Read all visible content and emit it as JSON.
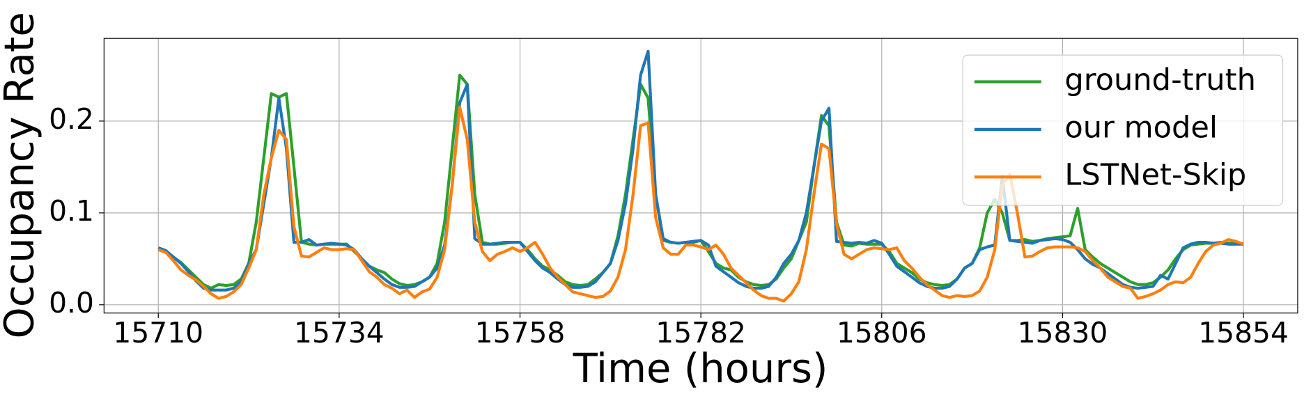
{
  "chart_data": {
    "type": "line",
    "xlabel": "Time (hours)",
    "ylabel": "Occupancy Rate",
    "x": [
      15710,
      15711,
      15712,
      15713,
      15714,
      15715,
      15716,
      15717,
      15718,
      15719,
      15720,
      15721,
      15722,
      15723,
      15724,
      15725,
      15726,
      15727,
      15728,
      15729,
      15730,
      15731,
      15732,
      15733,
      15734,
      15735,
      15736,
      15737,
      15738,
      15739,
      15740,
      15741,
      15742,
      15743,
      15744,
      15745,
      15746,
      15747,
      15748,
      15749,
      15750,
      15751,
      15752,
      15753,
      15754,
      15755,
      15756,
      15757,
      15758,
      15759,
      15760,
      15761,
      15762,
      15763,
      15764,
      15765,
      15766,
      15767,
      15768,
      15769,
      15770,
      15771,
      15772,
      15773,
      15774,
      15775,
      15776,
      15777,
      15778,
      15779,
      15780,
      15781,
      15782,
      15783,
      15784,
      15785,
      15786,
      15787,
      15788,
      15789,
      15790,
      15791,
      15792,
      15793,
      15794,
      15795,
      15796,
      15797,
      15798,
      15799,
      15800,
      15801,
      15802,
      15803,
      15804,
      15805,
      15806,
      15807,
      15808,
      15809,
      15810,
      15811,
      15812,
      15813,
      15814,
      15815,
      15816,
      15817,
      15818,
      15819,
      15820,
      15821,
      15822,
      15823,
      15824,
      15825,
      15826,
      15827,
      15828,
      15829,
      15830,
      15831,
      15832,
      15833,
      15834,
      15835,
      15836,
      15837,
      15838,
      15839,
      15840,
      15841,
      15842,
      15843,
      15844,
      15845,
      15846,
      15847,
      15848,
      15849,
      15850,
      15851,
      15852,
      15853,
      15854
    ],
    "series": [
      {
        "name": "ground-truth",
        "color": "#2ca02c",
        "values": [
          0.06,
          0.058,
          0.052,
          0.046,
          0.038,
          0.03,
          0.022,
          0.018,
          0.022,
          0.021,
          0.022,
          0.028,
          0.045,
          0.09,
          0.16,
          0.23,
          0.226,
          0.23,
          0.15,
          0.068,
          0.066,
          0.065,
          0.066,
          0.066,
          0.066,
          0.066,
          0.058,
          0.05,
          0.042,
          0.038,
          0.035,
          0.028,
          0.023,
          0.021,
          0.022,
          0.025,
          0.03,
          0.045,
          0.09,
          0.17,
          0.25,
          0.24,
          0.12,
          0.068,
          0.066,
          0.066,
          0.067,
          0.068,
          0.068,
          0.06,
          0.05,
          0.042,
          0.038,
          0.032,
          0.025,
          0.022,
          0.021,
          0.022,
          0.028,
          0.035,
          0.045,
          0.075,
          0.12,
          0.18,
          0.24,
          0.225,
          0.12,
          0.07,
          0.068,
          0.067,
          0.068,
          0.068,
          0.07,
          0.058,
          0.045,
          0.04,
          0.038,
          0.03,
          0.025,
          0.022,
          0.021,
          0.022,
          0.028,
          0.04,
          0.05,
          0.07,
          0.09,
          0.15,
          0.206,
          0.195,
          0.09,
          0.065,
          0.064,
          0.067,
          0.066,
          0.066,
          0.066,
          0.058,
          0.045,
          0.04,
          0.035,
          0.028,
          0.024,
          0.022,
          0.021,
          0.022,
          0.028,
          0.04,
          0.045,
          0.062,
          0.1,
          0.115,
          0.1,
          0.07,
          0.07,
          0.071,
          0.069,
          0.07,
          0.072,
          0.073,
          0.074,
          0.075,
          0.105,
          0.06,
          0.052,
          0.045,
          0.04,
          0.035,
          0.03,
          0.025,
          0.022,
          0.022,
          0.024,
          0.03,
          0.038,
          0.05,
          0.06,
          0.065,
          0.066,
          0.067,
          0.067,
          0.068,
          0.067,
          0.067,
          0.066
        ]
      },
      {
        "name": "our model",
        "color": "#1f77b4",
        "values": [
          0.062,
          0.059,
          0.052,
          0.045,
          0.036,
          0.026,
          0.018,
          0.016,
          0.016,
          0.016,
          0.018,
          0.025,
          0.045,
          0.06,
          0.11,
          0.16,
          0.225,
          0.17,
          0.068,
          0.068,
          0.071,
          0.065,
          0.066,
          0.067,
          0.066,
          0.065,
          0.06,
          0.05,
          0.042,
          0.035,
          0.028,
          0.022,
          0.019,
          0.019,
          0.02,
          0.025,
          0.03,
          0.04,
          0.065,
          0.13,
          0.22,
          0.24,
          0.072,
          0.066,
          0.066,
          0.067,
          0.068,
          0.068,
          0.068,
          0.058,
          0.048,
          0.04,
          0.035,
          0.028,
          0.022,
          0.019,
          0.019,
          0.02,
          0.025,
          0.035,
          0.045,
          0.07,
          0.11,
          0.17,
          0.25,
          0.276,
          0.12,
          0.072,
          0.068,
          0.067,
          0.068,
          0.069,
          0.07,
          0.065,
          0.042,
          0.036,
          0.03,
          0.024,
          0.02,
          0.018,
          0.018,
          0.02,
          0.03,
          0.045,
          0.055,
          0.07,
          0.1,
          0.15,
          0.2,
          0.214,
          0.069,
          0.068,
          0.067,
          0.068,
          0.067,
          0.07,
          0.067,
          0.055,
          0.042,
          0.036,
          0.03,
          0.024,
          0.02,
          0.018,
          0.018,
          0.02,
          0.028,
          0.04,
          0.045,
          0.06,
          0.063,
          0.065,
          0.14,
          0.07,
          0.069,
          0.068,
          0.067,
          0.07,
          0.071,
          0.072,
          0.071,
          0.068,
          0.06,
          0.05,
          0.044,
          0.04,
          0.034,
          0.028,
          0.022,
          0.019,
          0.018,
          0.019,
          0.02,
          0.032,
          0.028,
          0.045,
          0.062,
          0.066,
          0.068,
          0.068,
          0.067,
          0.067,
          0.066,
          0.066,
          0.066
        ]
      },
      {
        "name": "LSTNet-Skip",
        "color": "#ff7f0e",
        "values": [
          0.06,
          0.057,
          0.048,
          0.038,
          0.032,
          0.027,
          0.02,
          0.012,
          0.007,
          0.009,
          0.014,
          0.022,
          0.04,
          0.06,
          0.12,
          0.16,
          0.19,
          0.18,
          0.085,
          0.053,
          0.052,
          0.057,
          0.062,
          0.06,
          0.06,
          0.061,
          0.06,
          0.048,
          0.036,
          0.03,
          0.022,
          0.018,
          0.012,
          0.016,
          0.008,
          0.014,
          0.017,
          0.03,
          0.06,
          0.13,
          0.215,
          0.18,
          0.09,
          0.058,
          0.048,
          0.055,
          0.058,
          0.062,
          0.058,
          0.062,
          0.068,
          0.055,
          0.04,
          0.03,
          0.022,
          0.014,
          0.012,
          0.01,
          0.008,
          0.009,
          0.015,
          0.03,
          0.06,
          0.12,
          0.195,
          0.198,
          0.095,
          0.062,
          0.055,
          0.055,
          0.065,
          0.065,
          0.063,
          0.06,
          0.065,
          0.055,
          0.04,
          0.032,
          0.024,
          0.016,
          0.01,
          0.007,
          0.007,
          0.004,
          0.012,
          0.025,
          0.06,
          0.12,
          0.175,
          0.17,
          0.088,
          0.055,
          0.05,
          0.055,
          0.06,
          0.062,
          0.061,
          0.06,
          0.062,
          0.048,
          0.04,
          0.03,
          0.022,
          0.016,
          0.01,
          0.008,
          0.01,
          0.009,
          0.01,
          0.015,
          0.03,
          0.06,
          0.13,
          0.142,
          0.1,
          0.052,
          0.053,
          0.058,
          0.062,
          0.063,
          0.063,
          0.063,
          0.062,
          0.058,
          0.048,
          0.04,
          0.03,
          0.025,
          0.02,
          0.018,
          0.007,
          0.009,
          0.012,
          0.016,
          0.022,
          0.025,
          0.024,
          0.03,
          0.045,
          0.058,
          0.065,
          0.067,
          0.071,
          0.069,
          0.066
        ]
      }
    ],
    "xlim": [
      15702.8,
      15861.2
    ],
    "ylim": [
      -0.009,
      0.29
    ],
    "xticks": [
      15710,
      15734,
      15758,
      15782,
      15806,
      15830,
      15854
    ],
    "yticks": [
      {
        "value": 0,
        "label": "0.0"
      },
      0.1,
      0.2
    ],
    "grid": true,
    "legend": "upper right"
  }
}
